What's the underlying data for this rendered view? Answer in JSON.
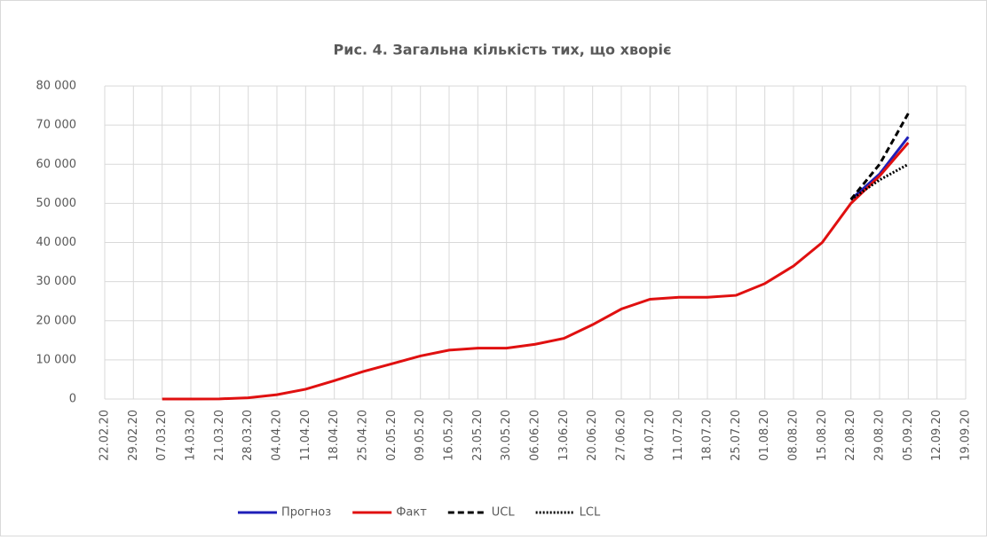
{
  "chart_data": {
    "type": "line",
    "title": "Рис. 4. Загальна кількість тих, що хворіє",
    "categories": [
      "22.02.20",
      "29.02.20",
      "07.03.20",
      "14.03.20",
      "21.03.20",
      "28.03.20",
      "04.04.20",
      "11.04.20",
      "18.04.20",
      "25.04.20",
      "02.05.20",
      "09.05.20",
      "16.05.20",
      "23.05.20",
      "30.05.20",
      "06.06.20",
      "13.06.20",
      "20.06.20",
      "27.06.20",
      "04.07.20",
      "11.07.20",
      "18.07.20",
      "25.07.20",
      "01.08.20",
      "08.08.20",
      "15.08.20",
      "22.08.20",
      "29.08.20",
      "05.09.20",
      "12.09.20",
      "19.09.20"
    ],
    "series": [
      {
        "name": "Прогноз",
        "color": "#1f1fb8",
        "dash": "solid",
        "values": [
          null,
          null,
          null,
          null,
          null,
          null,
          null,
          null,
          null,
          null,
          null,
          null,
          null,
          null,
          null,
          null,
          null,
          null,
          null,
          null,
          null,
          null,
          null,
          null,
          null,
          null,
          51000,
          57500,
          67000,
          null,
          null
        ]
      },
      {
        "name": "Факт",
        "color": "#e01010",
        "dash": "solid",
        "values": [
          null,
          null,
          1,
          3,
          40,
          300,
          1100,
          2500,
          4700,
          7000,
          9000,
          11000,
          12500,
          13000,
          13000,
          14000,
          15500,
          19000,
          23000,
          25500,
          26000,
          26000,
          26500,
          29500,
          34000,
          40000,
          50000,
          57000,
          65500,
          null,
          null
        ]
      },
      {
        "name": "UCL",
        "color": "#000000",
        "dash": "dashed",
        "values": [
          null,
          null,
          null,
          null,
          null,
          null,
          null,
          null,
          null,
          null,
          null,
          null,
          null,
          null,
          null,
          null,
          null,
          null,
          null,
          null,
          null,
          null,
          null,
          null,
          null,
          null,
          51000,
          60000,
          73000,
          null,
          null
        ]
      },
      {
        "name": "LCL",
        "color": "#000000",
        "dash": "dotted",
        "values": [
          null,
          null,
          null,
          null,
          null,
          null,
          null,
          null,
          null,
          null,
          null,
          null,
          null,
          null,
          null,
          null,
          null,
          null,
          null,
          null,
          null,
          null,
          null,
          null,
          null,
          null,
          51000,
          56000,
          60000,
          null,
          null
        ]
      }
    ],
    "ylim": [
      0,
      80000
    ],
    "yticks": [
      0,
      {
        "value": 10000,
        "label": "10 000"
      },
      {
        "value": 20000,
        "label": "20 000"
      },
      {
        "value": 30000,
        "label": "30 000"
      },
      {
        "value": 40000,
        "label": "40 000"
      },
      {
        "value": 50000,
        "label": "50 000"
      },
      {
        "value": 60000,
        "label": "60 000"
      },
      {
        "value": 70000,
        "label": "70 000"
      },
      {
        "value": 80000,
        "label": "80 000"
      }
    ],
    "grid": true,
    "legend": "bottom"
  }
}
